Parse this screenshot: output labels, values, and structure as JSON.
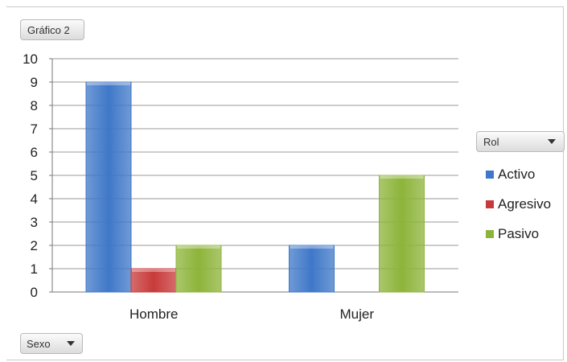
{
  "chart_title_button": "Gráfico 2",
  "legend_filter_label": "Rol",
  "axis_filter_label": "Sexo",
  "colors": {
    "Activo": "#3f78c8",
    "Agresivo": "#c83a3a",
    "Pasivo": "#8db43a",
    "grid": "#9a9a9a"
  },
  "chart_data": {
    "type": "bar",
    "categories": [
      "Hombre",
      "Mujer"
    ],
    "series": [
      {
        "name": "Activo",
        "values": [
          9,
          2
        ]
      },
      {
        "name": "Agresivo",
        "values": [
          1,
          0
        ]
      },
      {
        "name": "Pasivo",
        "values": [
          2,
          5
        ]
      }
    ],
    "ylim": [
      0,
      10
    ],
    "yticks": [
      0,
      1,
      2,
      3,
      4,
      5,
      6,
      7,
      8,
      9,
      10
    ],
    "grid": true,
    "legend": "right"
  }
}
